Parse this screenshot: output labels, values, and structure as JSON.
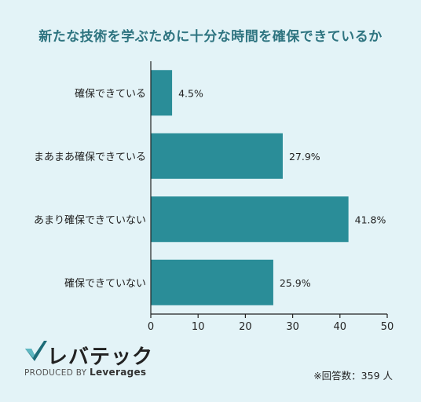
{
  "chart_data": {
    "type": "bar",
    "orientation": "horizontal",
    "title": "新たな技術を学ぶために十分な時間を確保できているか",
    "categories": [
      "確保できている",
      "まあまあ確保できている",
      "あまり確保できていない",
      "確保できていない"
    ],
    "values": [
      4.5,
      27.9,
      41.8,
      25.9
    ],
    "value_labels": [
      "4.5%",
      "27.9%",
      "41.8%",
      "25.9%"
    ],
    "xlim": [
      0,
      50
    ],
    "xticks": [
      0,
      10,
      20,
      30,
      40,
      50
    ],
    "grid": false,
    "bar_color": "#2a8d98"
  },
  "logo": {
    "name": "レバテック",
    "sub_prefix": "PRODUCED BY",
    "sub_brand": "Leverages"
  },
  "note": "※回答数：359 人",
  "colors": {
    "background": "#e3f3f7",
    "title": "#2e7480",
    "bar": "#2a8d98",
    "logo_check_dark": "#1d6c78",
    "logo_check_light": "#5fb8c2"
  }
}
